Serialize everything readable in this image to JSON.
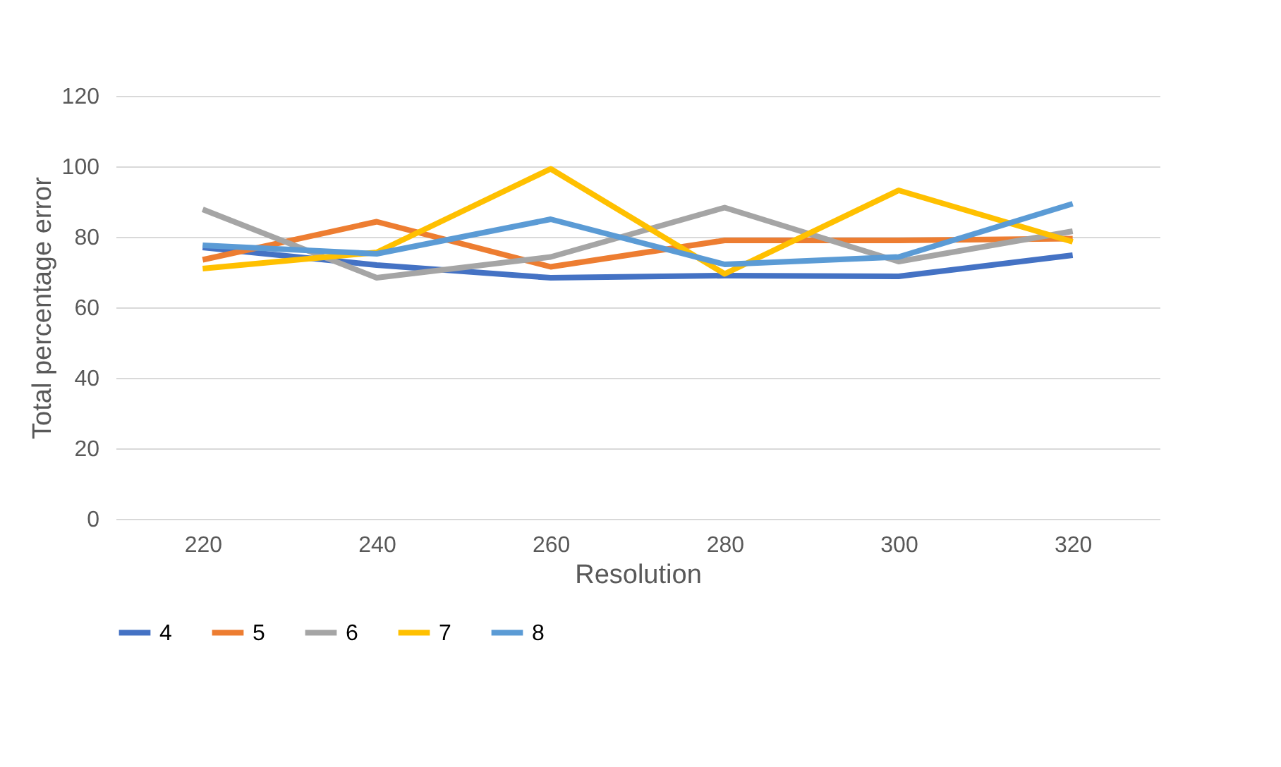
{
  "chart_data": {
    "type": "line",
    "xlabel": "Resolution",
    "ylabel": "Total percentage error",
    "categories": [
      "220",
      "240",
      "260",
      "280",
      "300",
      "320"
    ],
    "series": [
      {
        "name": "4",
        "color": "#4472c4",
        "values": [
          77,
          72,
          68.4,
          69,
          68.8,
          74.8
        ]
      },
      {
        "name": "5",
        "color": "#ed7d31",
        "values": [
          73.5,
          84.3,
          71.5,
          79,
          79,
          79.5
        ]
      },
      {
        "name": "6",
        "color": "#a5a5a5",
        "values": [
          87.8,
          68.4,
          74.3,
          88.3,
          73,
          81.6
        ]
      },
      {
        "name": "7",
        "color": "#ffc000",
        "values": [
          71,
          75.6,
          99.3,
          69.5,
          93.2,
          78.6
        ]
      },
      {
        "name": "8",
        "color": "#5b9bd5",
        "values": [
          77.6,
          75.2,
          85,
          72.2,
          74.3,
          89.4
        ]
      }
    ],
    "ylim": [
      0,
      120
    ],
    "yticks": [
      0,
      20,
      40,
      60,
      80,
      100,
      120
    ],
    "grid": "y",
    "legend": "bottom",
    "marker": "none",
    "line_style": "solid"
  }
}
